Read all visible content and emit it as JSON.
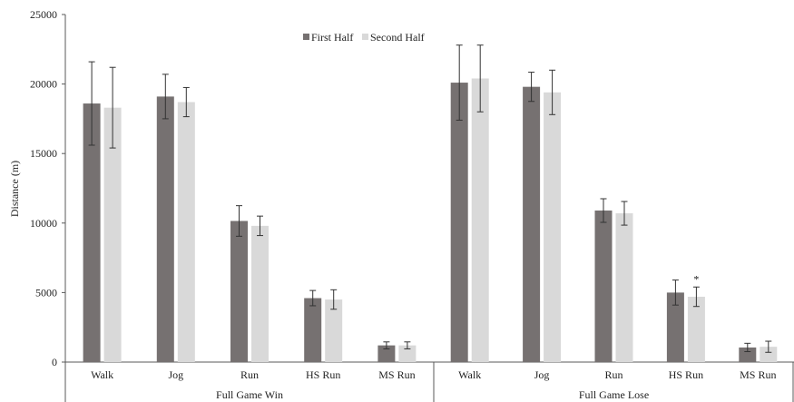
{
  "chart_data": {
    "type": "bar",
    "title": "",
    "xlabel": "",
    "ylabel": "Distance (m)",
    "ylim": [
      0,
      25000
    ],
    "yticks": [
      0,
      5000,
      10000,
      15000,
      20000,
      25000
    ],
    "grid": false,
    "legend_position": "top-center",
    "groups": [
      {
        "name": "Full Game Win",
        "categories": [
          "Walk",
          "Jog",
          "Run",
          "HS Run",
          "MS Run"
        ],
        "series": [
          {
            "name": "First Half",
            "color": "#767171",
            "values": [
              18600,
              19100,
              10150,
              4600,
              1200
            ],
            "errors": [
              3000,
              1600,
              1100,
              550,
              250
            ]
          },
          {
            "name": "Second Half",
            "color": "#d9d9d9",
            "values": [
              18300,
              18700,
              9800,
              4500,
              1200
            ],
            "errors": [
              2900,
              1050,
              700,
              700,
              250
            ]
          }
        ]
      },
      {
        "name": "Full Game Lose",
        "categories": [
          "Walk",
          "Jog",
          "Run",
          "HS Run",
          "MS Run"
        ],
        "series": [
          {
            "name": "First Half",
            "color": "#767171",
            "values": [
              20100,
              19800,
              10900,
              5000,
              1050
            ],
            "errors": [
              2700,
              1050,
              850,
              900,
              300
            ]
          },
          {
            "name": "Second Half",
            "color": "#d9d9d9",
            "values": [
              20400,
              19400,
              10700,
              4700,
              1100
            ],
            "errors": [
              2400,
              1600,
              850,
              700,
              400
            ]
          }
        ]
      }
    ],
    "annotations": [
      {
        "text": "*",
        "group": 1,
        "category": 3,
        "series": 1
      }
    ]
  }
}
